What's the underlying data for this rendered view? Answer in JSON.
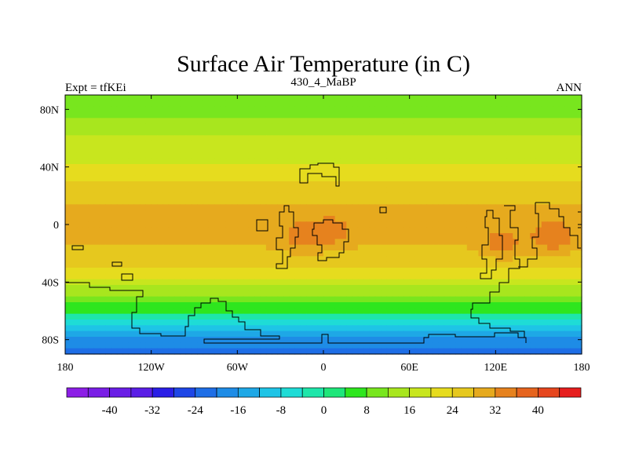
{
  "chart_data": {
    "type": "heatmap",
    "title": "Surface Air Temperature (in C)",
    "subtitle_left": "Expt = tfKEi",
    "subtitle_center": "430_4_MaBP",
    "subtitle_right": "ANN",
    "x_ticks": [
      {
        "value": -180,
        "label": "180"
      },
      {
        "value": -120,
        "label": "120W"
      },
      {
        "value": -60,
        "label": "60W"
      },
      {
        "value": 0,
        "label": "0"
      },
      {
        "value": 60,
        "label": "60E"
      },
      {
        "value": 120,
        "label": "120E"
      },
      {
        "value": 180,
        "label": "180"
      }
    ],
    "y_ticks": [
      {
        "value": 80,
        "label": "80N"
      },
      {
        "value": 40,
        "label": "40N"
      },
      {
        "value": 0,
        "label": "0"
      },
      {
        "value": -40,
        "label": "40S"
      },
      {
        "value": -80,
        "label": "80S"
      }
    ],
    "xlim": [
      -180,
      180
    ],
    "ylim": [
      -90,
      90
    ],
    "zonal_profile": [
      {
        "lat": 90,
        "t": 10
      },
      {
        "lat": 80,
        "t": 11
      },
      {
        "lat": 70,
        "t": 13
      },
      {
        "lat": 60,
        "t": 16
      },
      {
        "lat": 50,
        "t": 18
      },
      {
        "lat": 40,
        "t": 21
      },
      {
        "lat": 30,
        "t": 24
      },
      {
        "lat": 20,
        "t": 27
      },
      {
        "lat": 10,
        "t": 29
      },
      {
        "lat": 0,
        "t": 30
      },
      {
        "lat": -10,
        "t": 29
      },
      {
        "lat": -20,
        "t": 27
      },
      {
        "lat": -30,
        "t": 24
      },
      {
        "lat": -40,
        "t": 18
      },
      {
        "lat": -50,
        "t": 12
      },
      {
        "lat": -60,
        "t": 4
      },
      {
        "lat": -70,
        "t": -8
      },
      {
        "lat": -80,
        "t": -18
      },
      {
        "lat": -90,
        "t": -22
      }
    ],
    "hot_spots": [
      {
        "lon": 5,
        "lat": -5,
        "t": 35
      },
      {
        "lon": -15,
        "lat": -10,
        "t": 34
      },
      {
        "lon": 160,
        "lat": -10,
        "t": 36
      },
      {
        "lon": 125,
        "lat": -15,
        "t": 34
      }
    ],
    "colorbar": {
      "colors": [
        "#8c1ee6",
        "#7a1ee6",
        "#6a1ee6",
        "#5a1ee6",
        "#2a1ee6",
        "#1e46e6",
        "#1e6ee6",
        "#1e8ce6",
        "#1ea8e6",
        "#1ec4e6",
        "#1edcd6",
        "#1ee6aa",
        "#1ee67a",
        "#2ee61e",
        "#78e61e",
        "#a8e61e",
        "#c8e61e",
        "#e6dc1e",
        "#e6c81e",
        "#e6aa1e",
        "#e6821e",
        "#e6641e",
        "#e6461e",
        "#e61e1e"
      ],
      "labels": [
        "-40",
        "-32",
        "-24",
        "-16",
        "-8",
        "0",
        "8",
        "16",
        "24",
        "32",
        "40"
      ]
    }
  }
}
